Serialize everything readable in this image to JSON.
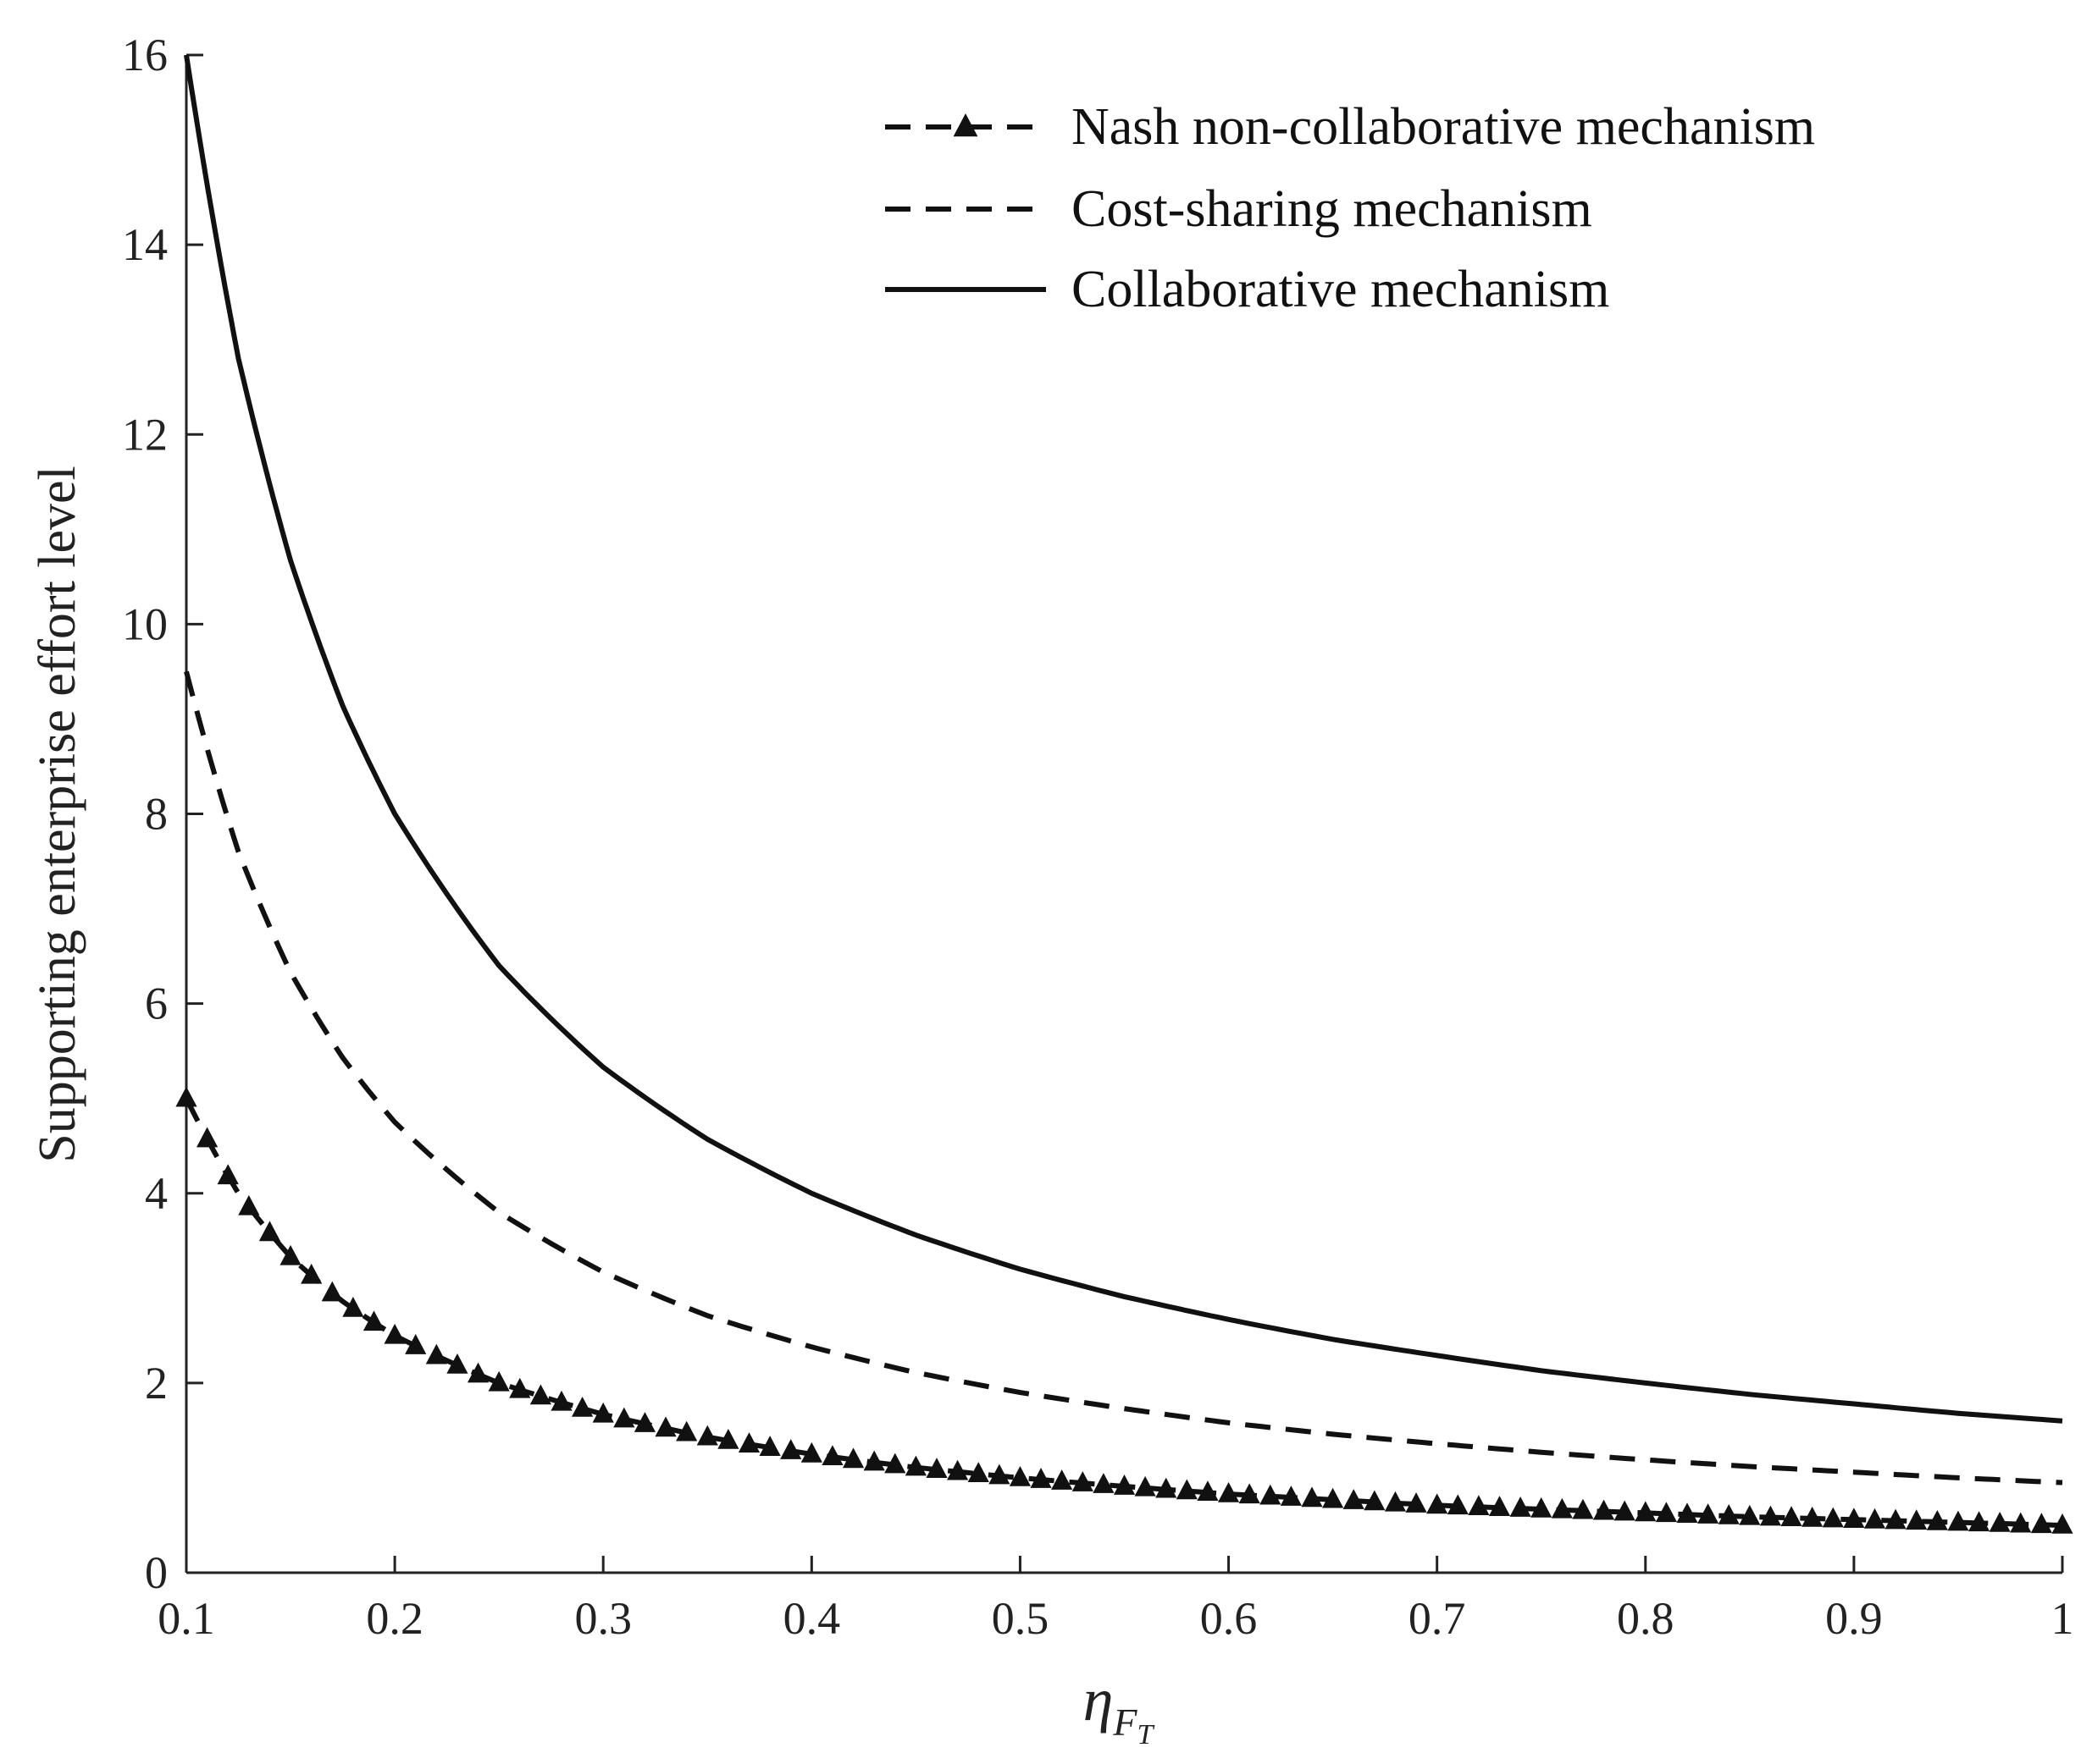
{
  "chart_data": {
    "type": "line",
    "title": "",
    "xlabel_main": "η",
    "xlabel_sub_main": "F",
    "xlabel_sub_sub": "T",
    "ylabel": "Supporting enterprise effort level",
    "xlim": [
      0.1,
      1
    ],
    "ylim": [
      0,
      16
    ],
    "xticks": [
      "0.1",
      "0.2",
      "0.3",
      "0.4",
      "0.5",
      "0.6",
      "0.7",
      "0.8",
      "0.9",
      "1"
    ],
    "yticks": [
      "0",
      "2",
      "4",
      "6",
      "8",
      "10",
      "12",
      "14",
      "16"
    ],
    "grid": false,
    "legend_position": "top-right",
    "x": [
      0.1,
      0.125,
      0.15,
      0.175,
      0.2,
      0.25,
      0.3,
      0.35,
      0.4,
      0.45,
      0.5,
      0.55,
      0.6,
      0.65,
      0.7,
      0.75,
      0.8,
      0.85,
      0.9,
      0.95,
      1.0
    ],
    "series": [
      {
        "name": "Nash non-collaborative mechanism",
        "style": "dashed-triangle",
        "values": [
          5.0,
          4.0,
          3.33,
          2.86,
          2.5,
          2.0,
          1.67,
          1.43,
          1.25,
          1.11,
          1.0,
          0.91,
          0.83,
          0.77,
          0.71,
          0.67,
          0.63,
          0.59,
          0.56,
          0.53,
          0.5
        ]
      },
      {
        "name": "Cost-sharing mechanism",
        "style": "dashed",
        "values": [
          9.5,
          7.6,
          6.33,
          5.43,
          4.75,
          3.8,
          3.17,
          2.71,
          2.38,
          2.11,
          1.9,
          1.73,
          1.58,
          1.46,
          1.36,
          1.27,
          1.19,
          1.12,
          1.06,
          1.0,
          0.95
        ]
      },
      {
        "name": "Collaborative mechanism",
        "style": "solid",
        "values": [
          16.0,
          12.8,
          10.67,
          9.14,
          8.0,
          6.4,
          5.33,
          4.57,
          4.0,
          3.56,
          3.2,
          2.91,
          2.67,
          2.46,
          2.29,
          2.13,
          2.0,
          1.88,
          1.78,
          1.68,
          1.6
        ]
      }
    ]
  }
}
